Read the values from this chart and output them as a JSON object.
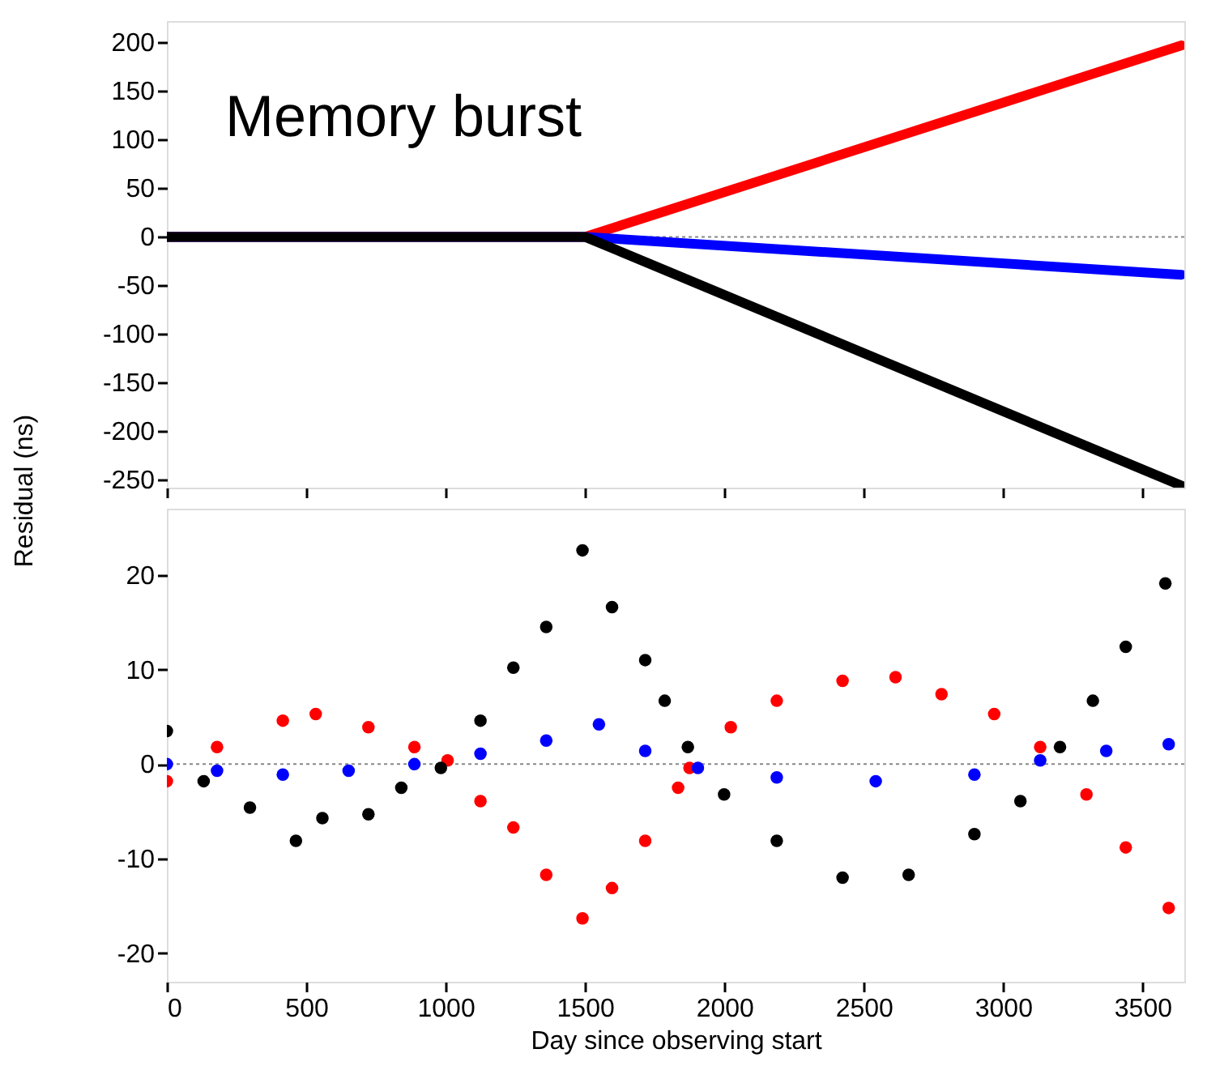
{
  "chart_data": [
    {
      "type": "line",
      "annotations": [
        "Memory burst"
      ],
      "xlim": [
        0,
        3650
      ],
      "xticks": [
        0,
        500,
        1000,
        1500,
        2000,
        2500,
        3000,
        3500
      ],
      "ylim": [
        -258,
        222
      ],
      "yticks": [
        -250,
        -200,
        -150,
        -100,
        -50,
        0,
        50,
        100,
        150,
        200
      ],
      "tick_labels": "y",
      "grid": false,
      "series": [
        {
          "color": "#ff0000",
          "x": [
            0,
            1500,
            3640
          ],
          "values": [
            0,
            0,
            197
          ]
        },
        {
          "color": "#0000ff",
          "x": [
            0,
            1500,
            3640
          ],
          "values": [
            0,
            0,
            -39
          ]
        },
        {
          "color": "#000000",
          "x": [
            0,
            1500,
            3640
          ],
          "values": [
            0,
            0,
            -256
          ]
        }
      ],
      "ref_lines": [
        {
          "axis": "y",
          "value": 0,
          "color": "#888888",
          "line_style": "dotted"
        }
      ]
    },
    {
      "type": "scatter",
      "marker": "circle",
      "xlabel": "Day since observing start",
      "ylabel": "Residual (ns)",
      "xlim": [
        0,
        3650
      ],
      "xticks": [
        0,
        500,
        1000,
        1500,
        2000,
        2500,
        3000,
        3500
      ],
      "ylim": [
        -23,
        27
      ],
      "yticks": [
        -20,
        -10,
        0,
        10,
        20
      ],
      "grid": false,
      "series": [
        {
          "color": "#ff0000",
          "x": [
            0,
            180,
            416,
            534,
            723,
            888,
            1007,
            1125,
            1243,
            1361,
            1491,
            1597,
            1716,
            1834,
            1875,
            2023,
            2188,
            2424,
            2614,
            2779,
            2968,
            3133,
            3299,
            3440,
            3594
          ],
          "values": [
            -1.8,
            1.8,
            4.6,
            5.3,
            3.9,
            1.8,
            0.4,
            -3.9,
            -6.7,
            -11.7,
            -16.3,
            -13.1,
            -8.1,
            -2.5,
            -0.4,
            3.9,
            6.7,
            8.8,
            9.2,
            7.4,
            5.3,
            1.8,
            -3.2,
            -8.8,
            -15.2
          ]
        },
        {
          "color": "#0000ff",
          "x": [
            0,
            180,
            416,
            652,
            888,
            1125,
            1361,
            1550,
            1716,
            1905,
            2188,
            2543,
            2897,
            3133,
            3370,
            3594
          ],
          "values": [
            0,
            -0.7,
            -1.1,
            -0.7,
            0,
            1.1,
            2.5,
            4.2,
            1.4,
            -0.4,
            -1.4,
            -1.8,
            -1.1,
            0.4,
            1.4,
            2.1
          ]
        },
        {
          "color": "#000000",
          "x": [
            0,
            132,
            298,
            463,
            558,
            723,
            841,
            983,
            1125,
            1243,
            1361,
            1491,
            1597,
            1716,
            1786,
            1869,
            1999,
            2188,
            2424,
            2661,
            2897,
            3062,
            3204,
            3322,
            3440,
            3582
          ],
          "values": [
            3.5,
            -1.8,
            -4.6,
            -8.1,
            -5.7,
            -5.3,
            -2.5,
            -0.4,
            4.6,
            10.2,
            14.5,
            22.6,
            16.6,
            11,
            6.7,
            1.8,
            -3.2,
            -8.1,
            -12,
            -11.7,
            -7.4,
            -3.9,
            1.8,
            6.7,
            12.4,
            19.1
          ]
        }
      ],
      "ref_lines": [
        {
          "axis": "y",
          "value": 0,
          "color": "#888888",
          "line_style": "dotted"
        }
      ]
    }
  ]
}
